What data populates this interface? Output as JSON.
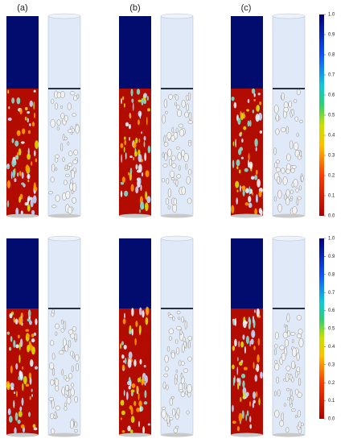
{
  "panel_labels": [
    "(a)",
    "(b)",
    "(c)"
  ],
  "colorbars": [
    {
      "ticks": [
        {
          "value": 0,
          "label": "0.0"
        },
        {
          "value": 0.1,
          "label": "0.1"
        },
        {
          "value": 0.2,
          "label": "0.2"
        },
        {
          "value": 0.3,
          "label": "0.3"
        },
        {
          "value": 0.4,
          "label": "0.4"
        },
        {
          "value": 0.5,
          "label": "0.5"
        },
        {
          "value": 0.6,
          "label": "0.6"
        },
        {
          "value": 0.7,
          "label": "0.7"
        },
        {
          "value": 0.8,
          "label": "0.8"
        },
        {
          "value": 0.9,
          "label": "0.9"
        },
        {
          "value": 1,
          "label": "1.0"
        }
      ]
    },
    {
      "ticks": [
        {
          "value": 0,
          "label": "0.0"
        },
        {
          "value": 0.1,
          "label": "0.1"
        },
        {
          "value": 0.2,
          "label": "0.2"
        },
        {
          "value": 0.3,
          "label": "0.3"
        },
        {
          "value": 0.4,
          "label": "0.4"
        },
        {
          "value": 0.5,
          "label": "0.5"
        },
        {
          "value": 0.6,
          "label": "0.6"
        },
        {
          "value": 0.7,
          "label": "0.7"
        },
        {
          "value": 0.8,
          "label": "0.8"
        },
        {
          "value": 0.9,
          "label": "0.9"
        },
        {
          "value": 1,
          "label": "1.0"
        }
      ]
    }
  ]
}
